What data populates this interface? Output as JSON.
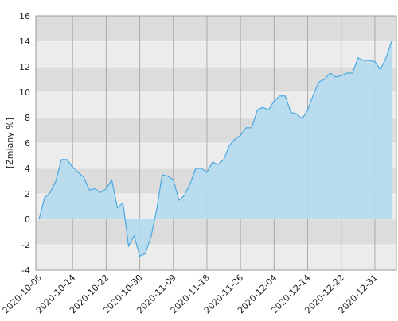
{
  "chart_data": {
    "type": "area",
    "y_label": "[Zmiany %]",
    "categories": [
      "2020-10-06",
      null,
      null,
      null,
      null,
      null,
      "2020-10-14",
      null,
      null,
      null,
      null,
      null,
      "2020-10-22",
      null,
      null,
      null,
      null,
      null,
      "2020-10-30",
      null,
      null,
      null,
      null,
      null,
      "2020-11-09",
      null,
      null,
      null,
      null,
      null,
      "2020-11-18",
      null,
      null,
      null,
      null,
      null,
      "2020-11-26",
      null,
      null,
      null,
      null,
      null,
      "2020-12-04",
      null,
      null,
      null,
      null,
      null,
      "2020-12-14",
      null,
      null,
      null,
      null,
      null,
      "2020-12-22",
      null,
      null,
      null,
      null,
      null,
      "2020-12-31",
      null,
      null,
      null
    ],
    "values": [
      0,
      1.7,
      2.1,
      3.0,
      4.7,
      4.7,
      4.1,
      3.7,
      3.3,
      2.3,
      2.4,
      2.1,
      2.4,
      3.1,
      0.9,
      1.3,
      -2.1,
      -1.3,
      -2.9,
      -2.7,
      -1.4,
      0.7,
      3.5,
      3.4,
      3.1,
      1.5,
      1.9,
      2.8,
      4.0,
      4.0,
      3.7,
      4.5,
      4.3,
      4.7,
      5.8,
      6.3,
      6.6,
      7.2,
      7.2,
      8.6,
      8.8,
      8.6,
      9.3,
      9.7,
      9.7,
      8.4,
      8.3,
      7.9,
      8.6,
      9.8,
      10.8,
      11.0,
      11.5,
      11.2,
      11.3,
      11.5,
      11.5,
      12.7,
      12.5,
      12.5,
      12.4,
      11.8,
      12.7,
      14.0
    ],
    "color": "#4aa8e0",
    "fill": "#b4dcee",
    "ylim": [
      -4,
      16
    ],
    "yticks": [
      -4,
      -2,
      0,
      2,
      4,
      6,
      8,
      10,
      12,
      14,
      16
    ],
    "band_colors": [
      "#ececec",
      "#dcdcdc"
    ],
    "grid": true
  }
}
